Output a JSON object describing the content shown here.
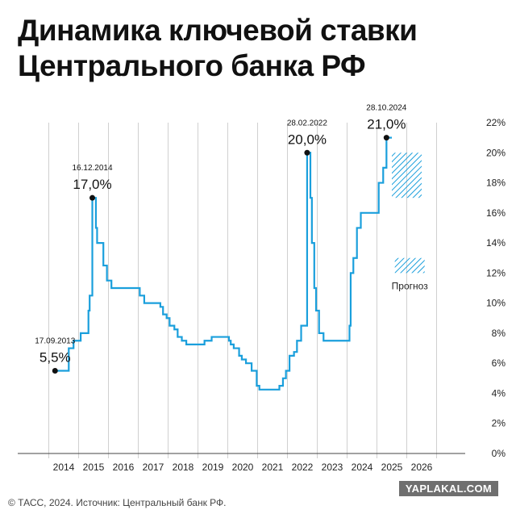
{
  "title_lines": [
    "Динамика ключевой ставки",
    "Центрального банка РФ"
  ],
  "footer": "© ТАСС, 2024. Источник: Центральный банк РФ.",
  "watermark": "YAPLAKAL.COM",
  "colors": {
    "line": "#1a9fdc",
    "forecast": "#1a9fdc",
    "grid": "#d0d0d0",
    "text": "#111111"
  },
  "chart_data": {
    "type": "line",
    "title": "Динамика ключевой ставки Центрального банка РФ",
    "xlabel": "",
    "ylabel": "",
    "xlim": [
      2013.3,
      2027.0
    ],
    "ylim": [
      0,
      22
    ],
    "grid": "vertical lines at years",
    "x_ticks": [
      "2014",
      "2015",
      "2016",
      "2017",
      "2018",
      "2019",
      "2020",
      "2021",
      "2022",
      "2023",
      "2024",
      "2025",
      "2026"
    ],
    "y_ticks": [
      "0%",
      "2%",
      "4%",
      "6%",
      "8%",
      "10%",
      "12%",
      "14%",
      "16%",
      "18%",
      "20%",
      "22%"
    ],
    "series": [
      {
        "step": true,
        "x": [
          2013.71,
          2014.17,
          2014.33,
          2014.57,
          2014.83,
          2014.87,
          2014.96,
          2015.08,
          2015.12,
          2015.33,
          2015.45,
          2015.6,
          2015.75,
          2016.55,
          2016.7,
          2017.24,
          2017.33,
          2017.45,
          2017.55,
          2017.71,
          2017.82,
          2017.96,
          2018.11,
          2018.26,
          2018.72,
          2018.96,
          2019.46,
          2019.54,
          2019.6,
          2019.7,
          2019.88,
          2019.97,
          2020.11,
          2020.3,
          2020.47,
          2020.56,
          2021.23,
          2021.35,
          2021.45,
          2021.57,
          2021.72,
          2021.82,
          2021.96,
          2022.16,
          2022.27,
          2022.32,
          2022.4,
          2022.46,
          2022.56,
          2022.71,
          2023.58,
          2023.62,
          2023.71,
          2023.83,
          2023.96,
          2024.56,
          2024.71,
          2024.82,
          2025.0
        ],
        "values": [
          5.5,
          7.0,
          7.5,
          8.0,
          9.5,
          10.5,
          17.0,
          15.0,
          14.0,
          12.5,
          11.5,
          11.0,
          11.0,
          10.5,
          10.0,
          9.75,
          9.25,
          9.0,
          8.5,
          8.25,
          7.75,
          7.5,
          7.25,
          7.25,
          7.5,
          7.75,
          7.75,
          7.5,
          7.25,
          7.0,
          6.5,
          6.25,
          6.0,
          5.5,
          4.5,
          4.25,
          4.5,
          5.0,
          5.5,
          6.5,
          6.75,
          7.5,
          8.5,
          20.0,
          17.0,
          14.0,
          11.0,
          9.5,
          8.0,
          7.5,
          8.5,
          12.0,
          13.0,
          15.0,
          16.0,
          18.0,
          19.0,
          21.0,
          21.0
        ]
      }
    ],
    "forecast": [
      {
        "x_range": [
          2025.0,
          2026.0
        ],
        "y_range": [
          17,
          20
        ]
      },
      {
        "x_range": [
          2025.1,
          2026.1
        ],
        "y_range": [
          12,
          13
        ]
      }
    ],
    "forecast_label": "Прогноз",
    "annotations": [
      {
        "date": "17.09.2013",
        "value_label": "5,5%",
        "x": 2013.71,
        "y": 5.5
      },
      {
        "date": "16.12.2014",
        "value_label": "17,0%",
        "x": 2014.96,
        "y": 17.0
      },
      {
        "date": "28.02.2022",
        "value_label": "20,0%",
        "x": 2022.16,
        "y": 20.0
      },
      {
        "date": "28.10.2024",
        "value_label": "21,0%",
        "x": 2024.82,
        "y": 21.0
      }
    ]
  }
}
